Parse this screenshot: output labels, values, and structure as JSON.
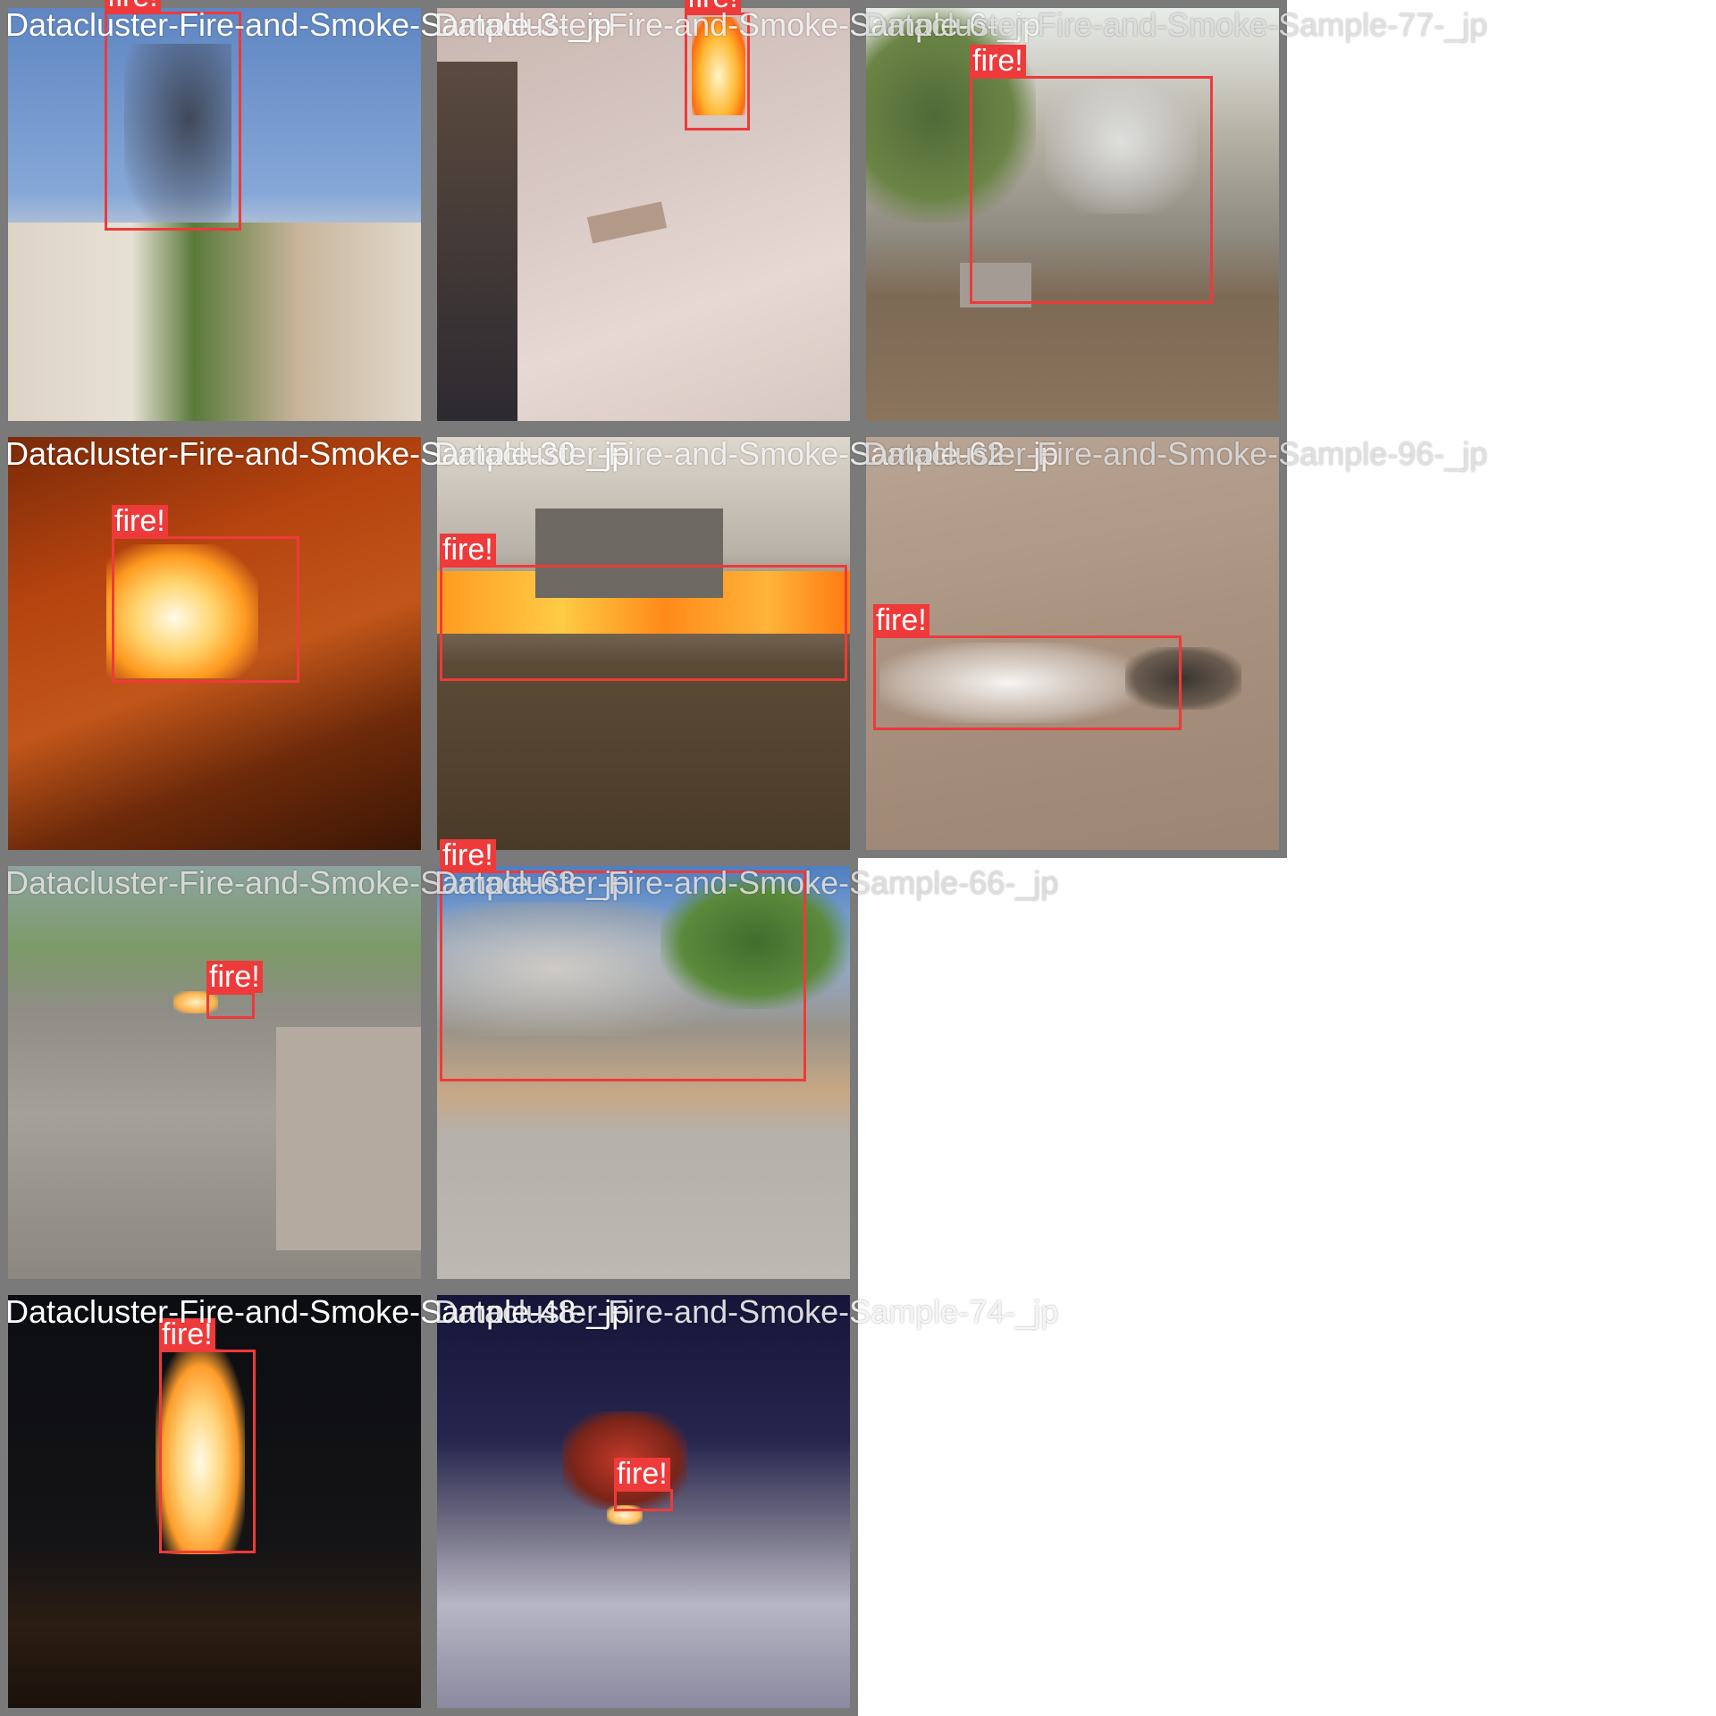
{
  "class_label": "fire!",
  "box_color": "#ee3a3a",
  "tiles": [
    {
      "caption": "Datacluster-Fire-and-Smoke-Sample-3-_jp",
      "label": "fire!"
    },
    {
      "caption": "Datacluster-Fire-and-Smoke-Sample-6-_jp",
      "label": "fire!"
    },
    {
      "caption": "Datacluster-Fire-and-Smoke-Sample-77-_jp",
      "label": "fire!"
    },
    {
      "caption": "Datacluster-Fire-and-Smoke-Sample-30-_jp",
      "label": "fire!"
    },
    {
      "caption": "Datacluster-Fire-and-Smoke-Sample-62-_jp",
      "label": "fire!"
    },
    {
      "caption": "Datacluster-Fire-and-Smoke-Sample-96-_jp",
      "label": "fire!"
    },
    {
      "caption": "Datacluster-Fire-and-Smoke-Sample-63-_jp",
      "label": "fire!"
    },
    {
      "caption": "Datacluster-Fire-and-Smoke-Sample-66-_jp",
      "label": "fire!"
    },
    {
      "caption": "Datacluster-Fire-and-Smoke-Sample-48-_jp",
      "label": "fire!"
    },
    {
      "caption": "Datacluster-Fire-and-Smoke-Sample-74-_jp",
      "label": "fire!"
    }
  ]
}
